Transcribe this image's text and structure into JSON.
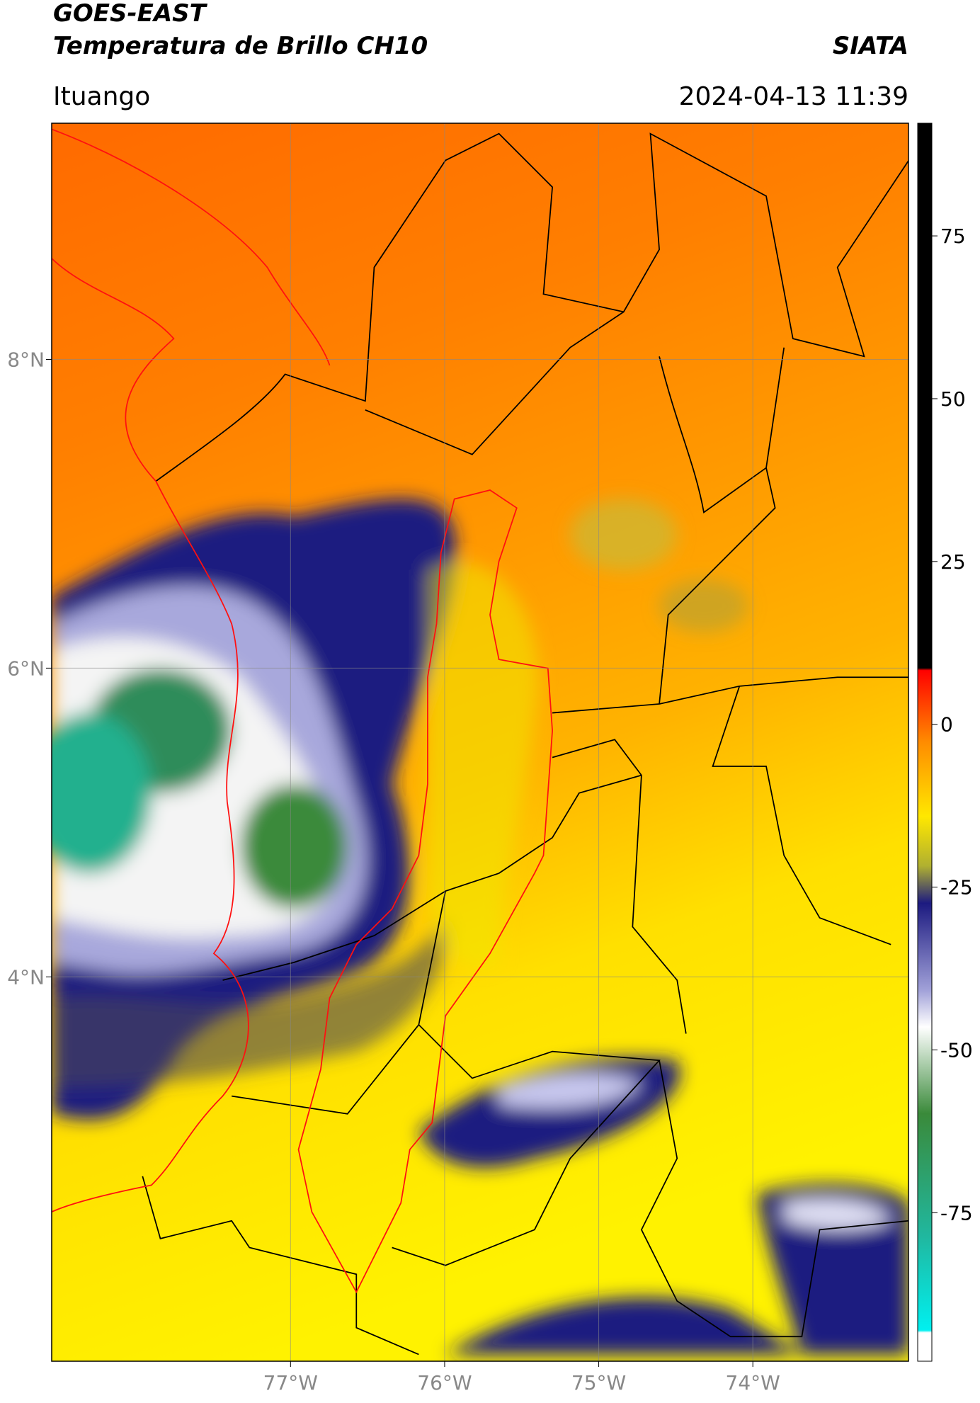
{
  "header": {
    "title": "GOES-EAST",
    "subtitle": "Temperatura de Brillo CH10",
    "source": "SIATA",
    "location": "Ituango",
    "datetime": "2024-04-13 11:39"
  },
  "map": {
    "xlim": [
      -78.55,
      -72.99
    ],
    "ylim": [
      1.51,
      9.53
    ],
    "xticks": [
      {
        "value": -77,
        "label": "77°W"
      },
      {
        "value": -76,
        "label": "76°W"
      },
      {
        "value": -75,
        "label": "75°W"
      },
      {
        "value": -74,
        "label": "74°W"
      }
    ],
    "yticks": [
      {
        "value": 8,
        "label": "8°N"
      },
      {
        "value": 6,
        "label": "6°N"
      },
      {
        "value": 4,
        "label": "4°N"
      }
    ],
    "grid": true
  },
  "colorbar": {
    "lim": [
      -97.8,
      92.3
    ],
    "ticks": [
      75,
      50,
      25,
      0,
      -25,
      -50,
      -75
    ]
  }
}
